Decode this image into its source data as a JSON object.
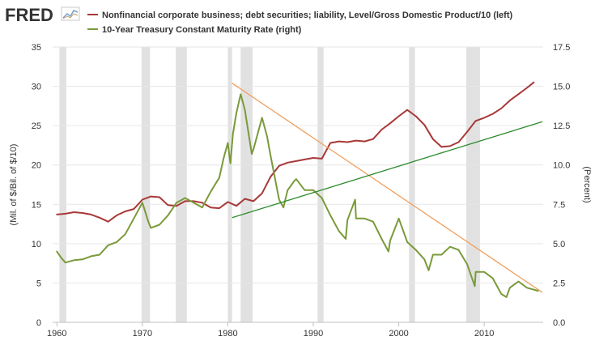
{
  "header": {
    "logo_text": "FRED",
    "logo_icon": "fred-graph-icon"
  },
  "chart_data": {
    "type": "line",
    "title": "",
    "xlabel": "",
    "ylabel_left": "(Mil. of $/Bil. of $/10)",
    "ylabel_right": "(Percent)",
    "xlim": [
      1959.5,
      2016.9
    ],
    "ylim_left": [
      0,
      35
    ],
    "ylim_right": [
      0,
      17.5
    ],
    "x_ticks": [
      1960,
      1970,
      1980,
      1990,
      2000,
      2010
    ],
    "x_tick_labels": [
      "1960",
      "1970",
      "1980",
      "1990",
      "2000",
      "2010"
    ],
    "y_left_ticks": [
      0,
      5,
      10,
      15,
      20,
      25,
      30,
      35
    ],
    "y_left_tick_labels": [
      "0",
      "5",
      "10",
      "15",
      "20",
      "25",
      "30",
      "35"
    ],
    "y_right_ticks": [
      0,
      2.5,
      5,
      7.5,
      10,
      12.5,
      15,
      17.5
    ],
    "y_right_tick_labels": [
      "0.0",
      "2.5",
      "5.0",
      "7.5",
      "10.0",
      "12.5",
      "15.0",
      "17.5"
    ],
    "grid": true,
    "legend_position": "top",
    "recessions": [
      [
        1960.3,
        1961.1
      ],
      [
        1969.9,
        1970.9
      ],
      [
        1973.9,
        1975.2
      ],
      [
        1980.0,
        1980.5
      ],
      [
        1981.5,
        1982.9
      ],
      [
        1990.5,
        1991.2
      ],
      [
        2001.2,
        2001.9
      ],
      [
        2007.9,
        2009.5
      ]
    ],
    "series": [
      {
        "name": "Nonfinancial corporate business; debt securities; liability, Level/Gross Domestic Product/10 (left)",
        "axis": "left",
        "color": "#a83838",
        "x": [
          1960,
          1961,
          1962,
          1963,
          1964,
          1965,
          1966,
          1967,
          1968,
          1969,
          1970,
          1971,
          1972,
          1973,
          1974,
          1975,
          1976,
          1977,
          1978,
          1979,
          1980,
          1981,
          1982,
          1983,
          1984,
          1985,
          1986,
          1987,
          1988,
          1989,
          1990,
          1991,
          1992,
          1993,
          1994,
          1995,
          1996,
          1997,
          1998,
          1999,
          2000,
          2001,
          2002,
          2003,
          2004,
          2005,
          2006,
          2007,
          2008,
          2009,
          2010,
          2011,
          2012,
          2013,
          2014,
          2015,
          2015.8
        ],
        "values": [
          13.7,
          13.8,
          14.0,
          13.9,
          13.7,
          13.3,
          12.8,
          13.6,
          14.1,
          14.4,
          15.6,
          16.0,
          15.9,
          14.9,
          14.8,
          15.4,
          15.4,
          15.2,
          14.6,
          14.5,
          15.3,
          14.8,
          15.7,
          15.4,
          16.4,
          18.5,
          19.9,
          20.3,
          20.5,
          20.7,
          20.9,
          20.8,
          22.8,
          23.0,
          22.9,
          23.1,
          23.0,
          23.3,
          24.5,
          25.3,
          26.2,
          27.0,
          26.2,
          25.1,
          23.3,
          22.3,
          22.4,
          22.9,
          24.2,
          25.6,
          26.0,
          26.5,
          27.2,
          28.2,
          29.0,
          29.8,
          30.5
        ]
      },
      {
        "name": "10-Year Treasury Constant Maturity Rate (right)",
        "axis": "right",
        "color": "#7a9a3a",
        "x": [
          1960,
          1960.5,
          1961,
          1962,
          1963,
          1964,
          1965,
          1966,
          1967,
          1968,
          1969,
          1970,
          1970.7,
          1971,
          1972,
          1973,
          1974,
          1975,
          1976,
          1977,
          1978,
          1979,
          1979.5,
          1980,
          1980.3,
          1980.6,
          1981,
          1981.5,
          1982,
          1982.8,
          1983,
          1984,
          1984.6,
          1985,
          1986,
          1986.5,
          1987,
          1987.8,
          1988,
          1989,
          1990,
          1991,
          1992,
          1993,
          1993.8,
          1994,
          1994.9,
          1995,
          1996,
          1997,
          1998,
          1998.8,
          1999,
          2000,
          2001,
          2002,
          2003,
          2003.5,
          2004,
          2005,
          2006,
          2007,
          2008,
          2008.9,
          2009,
          2010,
          2011,
          2012,
          2012.6,
          2013,
          2014,
          2015,
          2016.3
        ],
        "values": [
          4.5,
          4.1,
          3.8,
          3.95,
          4.0,
          4.2,
          4.3,
          4.9,
          5.1,
          5.6,
          6.6,
          7.6,
          6.4,
          6.0,
          6.2,
          6.8,
          7.6,
          7.9,
          7.6,
          7.3,
          8.3,
          9.2,
          10.4,
          11.4,
          10.1,
          12.0,
          13.3,
          14.5,
          13.5,
          10.7,
          11.0,
          13.0,
          11.8,
          10.6,
          7.8,
          7.3,
          8.4,
          9.0,
          9.1,
          8.4,
          8.4,
          7.9,
          6.8,
          5.8,
          5.3,
          6.5,
          7.8,
          6.6,
          6.6,
          6.4,
          5.3,
          4.5,
          5.2,
          6.6,
          5.1,
          4.6,
          4.0,
          3.3,
          4.3,
          4.3,
          4.8,
          4.6,
          3.7,
          2.3,
          3.2,
          3.2,
          2.8,
          1.8,
          1.6,
          2.2,
          2.6,
          2.2,
          2.0
        ]
      }
    ],
    "trendlines": [
      {
        "name": "descending-trendline",
        "axis": "right",
        "color": "#f0a060",
        "x": [
          1980.5,
          2016.8
        ],
        "values": [
          15.2,
          1.9
        ]
      },
      {
        "name": "ascending-trendline",
        "axis": "left",
        "color": "#2e8b2e",
        "x": [
          1980.5,
          2016.8
        ],
        "values": [
          13.3,
          25.5
        ]
      }
    ]
  }
}
